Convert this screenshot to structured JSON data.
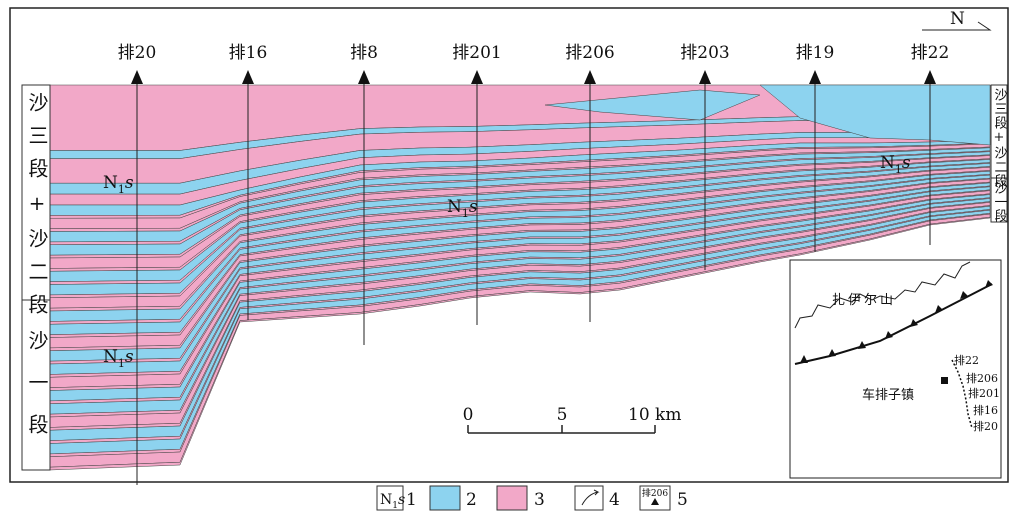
{
  "wells": [
    "排20",
    "排16",
    "排8",
    "排201",
    "排206",
    "排203",
    "排19",
    "排22"
  ],
  "left_units": [
    "沙三段+沙二段",
    "沙一段"
  ],
  "right_units": [
    "沙三段+沙二段",
    "沙一段"
  ],
  "formation_label": {
    "main": "N",
    "subscript": "1",
    "italic": "s"
  },
  "north": "N",
  "scale": [
    "0",
    "5",
    "10 km"
  ],
  "inset": {
    "mountain": "扎伊尔山",
    "town": "车排子镇",
    "wells": [
      "排22",
      "排206",
      "排201",
      "排16",
      "排20"
    ]
  },
  "legend": [
    "1",
    "2",
    "3",
    "4",
    "5"
  ],
  "legend_well": "排206"
}
